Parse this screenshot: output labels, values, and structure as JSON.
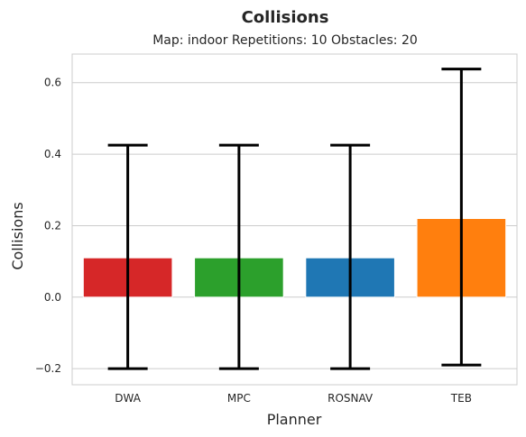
{
  "chart_data": {
    "type": "bar",
    "title": "Collisions",
    "subtitle": "Map: indoor Repetitions: 10 Obstacles: 20",
    "xlabel": "Planner",
    "ylabel": "Collisions",
    "categories": [
      "DWA",
      "MPC",
      "ROSNAV",
      "TEB"
    ],
    "values": [
      0.11,
      0.11,
      0.11,
      0.22
    ],
    "error_low": [
      -0.2,
      -0.2,
      -0.2,
      -0.19
    ],
    "error_high": [
      0.425,
      0.425,
      0.425,
      0.638
    ],
    "colors": [
      "#d62728",
      "#2ca02c",
      "#1f77b4",
      "#ff7f0e"
    ],
    "ylim": [
      -0.245,
      0.68
    ],
    "yticks": [
      -0.2,
      0.0,
      0.2,
      0.4,
      0.6
    ],
    "ytick_labels": [
      "−0.2",
      "0.0",
      "0.2",
      "0.4",
      "0.6"
    ],
    "grid": true,
    "legend": "none"
  }
}
